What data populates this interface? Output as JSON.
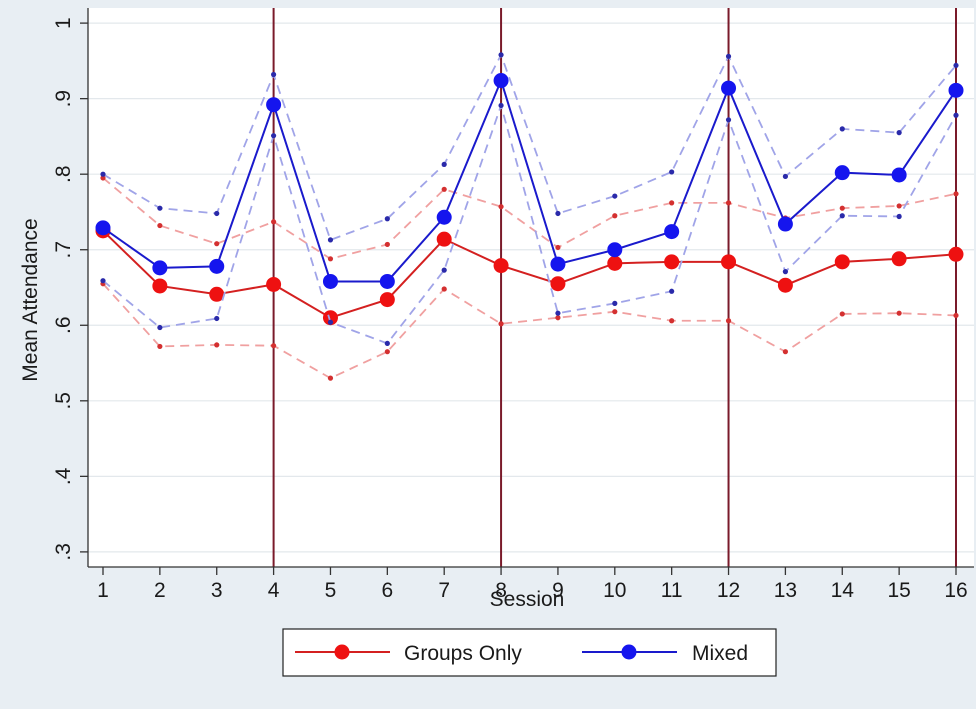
{
  "chart_data": {
    "type": "line",
    "title": "",
    "xlabel": "Session",
    "ylabel": "Mean Attendance",
    "x": [
      1,
      2,
      3,
      4,
      5,
      6,
      7,
      8,
      9,
      10,
      11,
      12,
      13,
      14,
      15,
      16
    ],
    "x_tick_labels": [
      "1",
      "2",
      "3",
      "4",
      "5",
      "6",
      "7",
      "8",
      "9",
      "10",
      "11",
      "12",
      "13",
      "14",
      "15",
      "16"
    ],
    "ylim": [
      0.28,
      1.02
    ],
    "y_ticks": [
      0.3,
      0.4,
      0.5,
      0.6,
      0.7,
      0.8,
      0.9,
      1.0
    ],
    "y_tick_labels": [
      ".3",
      ".4",
      ".5",
      ".6",
      ".7",
      ".8",
      ".9",
      "1"
    ],
    "grid": "horizontal",
    "vertical_markers": [
      4,
      8,
      12,
      16
    ],
    "legend_position": "bottom",
    "series": [
      {
        "name": "Groups Only",
        "color": "#d42020",
        "values": [
          0.725,
          0.652,
          0.641,
          0.654,
          0.61,
          0.634,
          0.714,
          0.679,
          0.655,
          0.682,
          0.684,
          0.684,
          0.653,
          0.684,
          0.688,
          0.694
        ],
        "ci_upper": [
          0.795,
          0.732,
          0.708,
          0.737,
          0.688,
          0.707,
          0.78,
          0.757,
          0.703,
          0.745,
          0.762,
          0.762,
          0.742,
          0.755,
          0.758,
          0.774
        ],
        "ci_lower": [
          0.655,
          0.572,
          0.574,
          0.573,
          0.53,
          0.565,
          0.648,
          0.602,
          0.61,
          0.618,
          0.606,
          0.606,
          0.565,
          0.615,
          0.616,
          0.613
        ]
      },
      {
        "name": "Mixed",
        "color": "#1a1acc",
        "values": [
          0.729,
          0.676,
          0.678,
          0.892,
          0.658,
          0.658,
          0.743,
          0.924,
          0.681,
          0.7,
          0.724,
          0.914,
          0.734,
          0.802,
          0.799,
          0.911
        ],
        "ci_upper": [
          0.8,
          0.755,
          0.748,
          0.932,
          0.713,
          0.741,
          0.813,
          0.958,
          0.748,
          0.771,
          0.803,
          0.956,
          0.797,
          0.86,
          0.855,
          0.944
        ],
        "ci_lower": [
          0.659,
          0.597,
          0.609,
          0.851,
          0.604,
          0.576,
          0.673,
          0.891,
          0.616,
          0.629,
          0.645,
          0.872,
          0.671,
          0.745,
          0.744,
          0.878
        ]
      }
    ]
  }
}
